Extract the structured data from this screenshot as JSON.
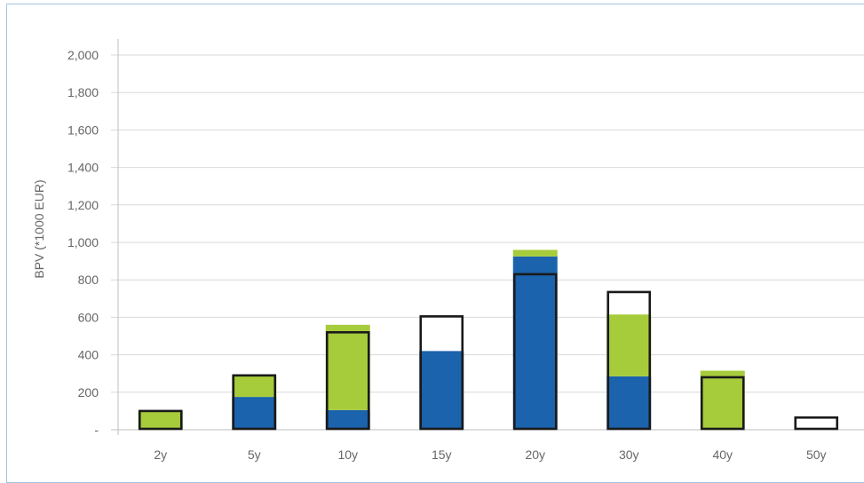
{
  "chart_data": {
    "type": "bar",
    "stacked": true,
    "title": "",
    "xlabel": "",
    "ylabel": "BPV (*1000 EUR)",
    "categories": [
      "2y",
      "5y",
      "10y",
      "15y",
      "20y",
      "30y",
      "40y",
      "50y"
    ],
    "ylim": [
      0,
      2000
    ],
    "y_ticks": [
      "-",
      "200",
      "400",
      "600",
      "800",
      "1,000",
      "1,200",
      "1,400",
      "1,600",
      "1,800",
      "2,000"
    ],
    "grid": true,
    "legend": "none",
    "series": [
      {
        "values": [
          0,
          175,
          105,
          420,
          925,
          285,
          0,
          0
        ]
      },
      {
        "values": [
          100,
          115,
          455,
          0,
          35,
          330,
          315,
          0
        ]
      }
    ],
    "outline_values": [
      100,
      290,
      520,
      605,
      830,
      735,
      280,
      65
    ],
    "colors": {
      "series_0": "#1b63ad",
      "series_1": "#a6cc3b",
      "outline": "#1a1a1a",
      "grid": "#d9d9d9",
      "axis": "#bfbfbf",
      "text": "#666666"
    }
  }
}
